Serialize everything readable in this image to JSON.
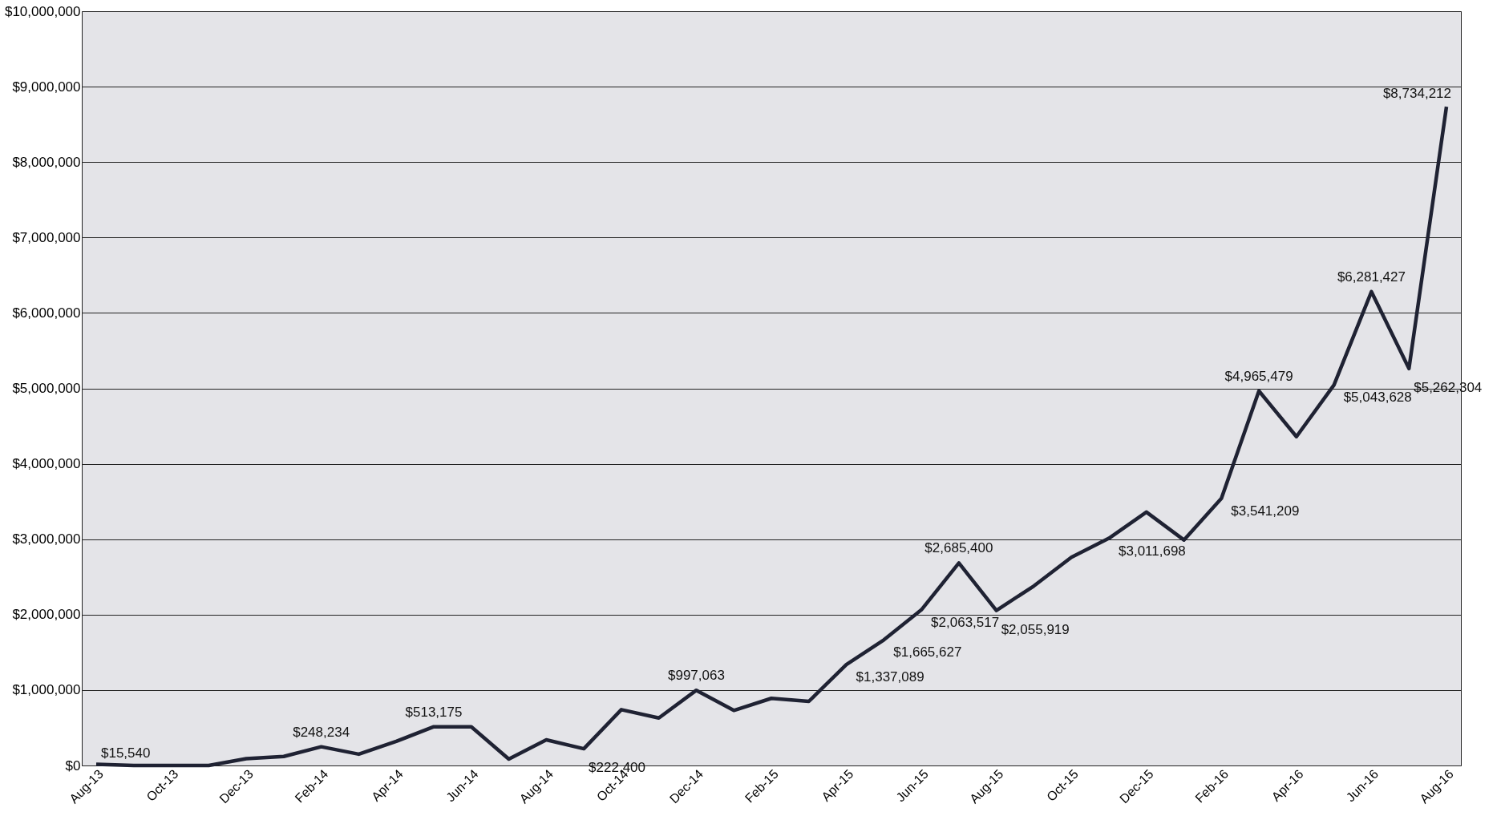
{
  "chart_data": {
    "type": "line",
    "categories": [
      "Aug-13",
      null,
      "Oct-13",
      null,
      "Dec-13",
      null,
      "Feb-14",
      null,
      "Apr-14",
      null,
      "Jun-14",
      null,
      "Aug-14",
      null,
      "Oct-14",
      null,
      "Dec-14",
      null,
      "Feb-15",
      null,
      "Apr-15",
      null,
      "Jun-15",
      null,
      "Aug-15",
      null,
      "Oct-15",
      null,
      "Dec-15",
      null,
      "Feb-16",
      null,
      "Apr-16",
      null,
      "Jun-16",
      null,
      "Aug-16"
    ],
    "series": [
      {
        "color": "#1f2233",
        "values": [
          15540,
          0,
          0,
          0,
          90000,
          120000,
          248234,
          150000,
          320000,
          513175,
          513000,
          85000,
          340000,
          222400,
          740000,
          630000,
          997063,
          730000,
          890000,
          850000,
          1337089,
          1665627,
          2063517,
          2685400,
          2055919,
          2380000,
          2760000,
          3011698,
          3360000,
          2990000,
          3541209,
          4965479,
          4360000,
          5043628,
          6281427,
          5262304,
          8734212
        ],
        "value_labels": [
          "$15,540",
          null,
          null,
          null,
          null,
          null,
          "$248,234",
          null,
          null,
          "$513,175",
          null,
          null,
          null,
          "$222,400",
          null,
          null,
          "$997,063",
          null,
          null,
          null,
          "$1,337,089",
          "$1,665,627",
          "$2,063,517",
          "$2,685,400",
          "$2,055,919",
          null,
          null,
          "$3,011,698",
          null,
          null,
          "$3,541,209",
          "$4,965,479",
          null,
          "$5,043,628",
          "$6,281,427",
          "$5,262,304",
          "$8,734,212"
        ]
      }
    ],
    "ylim": [
      0,
      10000000
    ],
    "yticks": [
      {
        "value": 0,
        "label": "$0"
      },
      {
        "value": 1000000,
        "label": "$1,000,000"
      },
      {
        "value": 2000000,
        "label": "$2,000,000"
      },
      {
        "value": 3000000,
        "label": "$3,000,000"
      },
      {
        "value": 4000000,
        "label": "$4,000,000"
      },
      {
        "value": 5000000,
        "label": "$5,000,000"
      },
      {
        "value": 6000000,
        "label": "$6,000,000"
      },
      {
        "value": 7000000,
        "label": "$7,000,000"
      },
      {
        "value": 8000000,
        "label": "$8,000,000"
      },
      {
        "value": 9000000,
        "label": "$9,000,000"
      },
      {
        "value": 10000000,
        "label": "$10,000,000"
      }
    ],
    "grid": "y",
    "legend": false,
    "marker": "none",
    "line_style": "solid"
  }
}
